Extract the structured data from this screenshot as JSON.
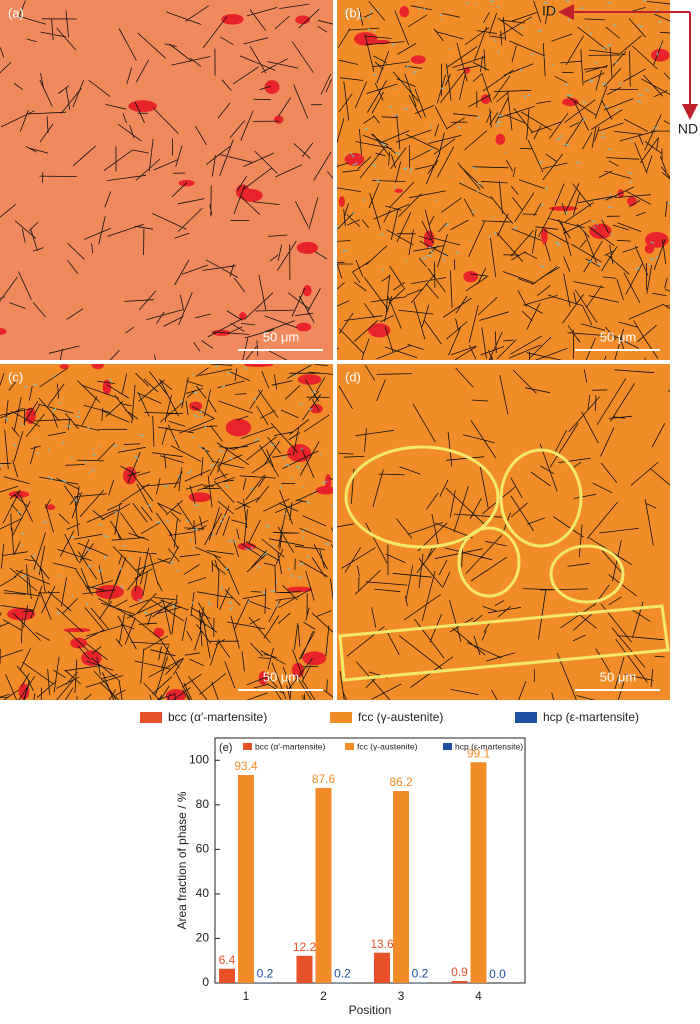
{
  "panels": [
    {
      "label": "(a)",
      "scale": "50 μm"
    },
    {
      "label": "(b)",
      "scale": "50 μm"
    },
    {
      "label": "(c)",
      "scale": "50 μm"
    },
    {
      "label": "(d)",
      "scale": "50 μm"
    }
  ],
  "directions": {
    "horizontal": "ID",
    "vertical": "ND"
  },
  "chart_data": {
    "type": "bar",
    "panel_label": "(e)",
    "xlabel": "Position",
    "ylabel": "Area fraction of phase / %",
    "categories": [
      "1",
      "2",
      "3",
      "4"
    ],
    "series": [
      {
        "name": "bcc (α′-martensite)",
        "color": "#e8502a",
        "values": [
          6.4,
          12.2,
          13.6,
          0.9
        ],
        "value_labels": [
          "6.4",
          "12.2",
          "13.6",
          "0.9"
        ]
      },
      {
        "name": "fcc (γ-austenite)",
        "color": "#f28c28",
        "values": [
          93.4,
          87.6,
          86.2,
          99.1
        ],
        "value_labels": [
          "93.4",
          "87.6",
          "86.2",
          "99.1"
        ]
      },
      {
        "name": "hcp (ε-martensite)",
        "color": "#1f4fa0",
        "values": [
          0.2,
          0.2,
          0.2,
          0.0
        ],
        "value_labels": [
          "0.2",
          "0.2",
          "0.2",
          "0.0"
        ]
      }
    ],
    "ylim": [
      0,
      110
    ],
    "yticks": [
      0,
      20,
      40,
      60,
      80,
      100
    ],
    "grid": false
  }
}
